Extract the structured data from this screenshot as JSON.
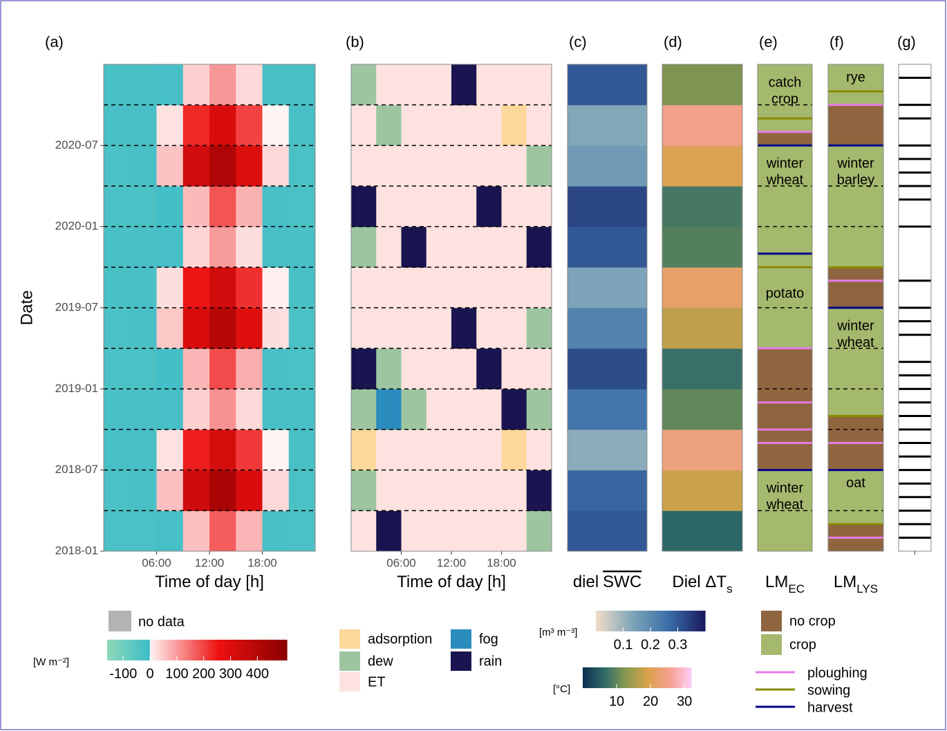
{
  "chart_data": [
    {
      "type": "heatmap",
      "label": "(a)",
      "y_label": "Date",
      "x_label": "Time of day [h]",
      "x": [
        0,
        3,
        6,
        9,
        12,
        15,
        18,
        21
      ],
      "xlim": [
        0,
        24
      ],
      "xticks": [
        {
          "value": 6,
          "label": "06:00"
        },
        {
          "value": 12,
          "label": "12:00"
        },
        {
          "value": 18,
          "label": "18:00"
        }
      ],
      "y": [
        "2018-01",
        "2018-04",
        "2018-07",
        "2018-10",
        "2019-01",
        "2019-04",
        "2019-07",
        "2019-10",
        "2020-01",
        "2020-04",
        "2020-07",
        "2020-10"
      ],
      "ylim": [
        "2018-01",
        "2021-01"
      ],
      "yticks": [
        "2018-01",
        "2018-07",
        "2019-01",
        "2019-07",
        "2020-01",
        "2020-07"
      ],
      "values": [
        [
          -30,
          -30,
          -20,
          60,
          170,
          70,
          -25,
          -30
        ],
        [
          -30,
          -25,
          60,
          340,
          430,
          310,
          30,
          -30
        ],
        [
          -25,
          -25,
          20,
          240,
          320,
          210,
          0,
          -25
        ],
        [
          -25,
          -25,
          -20,
          40,
          110,
          30,
          -25,
          -25
        ],
        [
          -30,
          -30,
          -15,
          70,
          190,
          80,
          -25,
          -30
        ],
        [
          -30,
          -25,
          50,
          310,
          400,
          290,
          25,
          -30
        ],
        [
          -25,
          -25,
          25,
          250,
          330,
          220,
          5,
          -25
        ],
        [
          -25,
          -25,
          -20,
          35,
          100,
          25,
          -25,
          -25
        ],
        [
          -30,
          -30,
          -15,
          65,
          180,
          75,
          -25,
          -30
        ],
        [
          -30,
          -25,
          55,
          330,
          420,
          300,
          30,
          -30
        ],
        [
          -25,
          -25,
          20,
          230,
          310,
          200,
          0,
          -25
        ],
        [
          -25,
          -25,
          -20,
          40,
          105,
          30,
          -25,
          -25
        ]
      ],
      "no_data_label": "no data",
      "no_data_color": "#b3b3b3",
      "colorbar": {
        "title": "[W m⁻²]",
        "lim": [
          -160,
          510
        ],
        "ticks": [
          -100,
          0,
          100,
          200,
          300,
          400
        ],
        "colors_negative": [
          "#8fd8b8",
          "#3cbcc8"
        ],
        "colors_positive": [
          "#fff4f4",
          "#ee1111",
          "#8b0000"
        ]
      }
    },
    {
      "type": "category_heatmap",
      "label": "(b)",
      "x_label": "Time of day [h]",
      "x": [
        0,
        3,
        6,
        9,
        12,
        15,
        18,
        21
      ],
      "xlim": [
        0,
        24
      ],
      "xticks": [
        {
          "value": 6,
          "label": "06:00"
        },
        {
          "value": 12,
          "label": "12:00"
        },
        {
          "value": 18,
          "label": "18:00"
        }
      ],
      "y": [
        "2018-01",
        "2018-04",
        "2018-07",
        "2018-10",
        "2019-01",
        "2019-04",
        "2019-07",
        "2019-10",
        "2020-01",
        "2020-04",
        "2020-07",
        "2020-10"
      ],
      "ylim": [
        "2018-01",
        "2021-01"
      ],
      "categories": [
        {
          "name": "adsorption",
          "color": "#fdd89b"
        },
        {
          "name": "dew",
          "color": "#9dc6a0"
        },
        {
          "name": "ET",
          "color": "#fde2e0"
        },
        {
          "name": "fog",
          "color": "#2b8cbe"
        },
        {
          "name": "rain",
          "color": "#1a1550"
        }
      ],
      "values": [
        [
          "ET",
          "rain",
          "ET",
          "ET",
          "ET",
          "ET",
          "ET",
          "dew"
        ],
        [
          "dew",
          "ET",
          "ET",
          "ET",
          "ET",
          "ET",
          "ET",
          "rain"
        ],
        [
          "adsorption",
          "ET",
          "ET",
          "ET",
          "ET",
          "ET",
          "adsorption",
          "ET"
        ],
        [
          "dew",
          "fog",
          "dew",
          "ET",
          "ET",
          "ET",
          "rain",
          "dew"
        ],
        [
          "rain",
          "dew",
          "ET",
          "ET",
          "ET",
          "rain",
          "ET",
          "ET"
        ],
        [
          "ET",
          "ET",
          "ET",
          "ET",
          "rain",
          "ET",
          "ET",
          "dew"
        ],
        [
          "ET",
          "ET",
          "ET",
          "ET",
          "ET",
          "ET",
          "ET",
          "ET"
        ],
        [
          "dew",
          "ET",
          "rain",
          "ET",
          "ET",
          "ET",
          "ET",
          "rain"
        ],
        [
          "rain",
          "ET",
          "ET",
          "ET",
          "ET",
          "rain",
          "ET",
          "ET"
        ],
        [
          "ET",
          "ET",
          "ET",
          "ET",
          "ET",
          "ET",
          "ET",
          "dew"
        ],
        [
          "ET",
          "dew",
          "ET",
          "ET",
          "ET",
          "ET",
          "adsorption",
          "ET"
        ],
        [
          "dew",
          "ET",
          "ET",
          "ET",
          "rain",
          "ET",
          "ET",
          "ET"
        ]
      ]
    },
    {
      "type": "strip",
      "label": "(c)",
      "x_label": "diel",
      "x_label_overlined": "SWC",
      "y": [
        "2018-01",
        "2018-04",
        "2018-07",
        "2018-10",
        "2019-01",
        "2019-04",
        "2019-07",
        "2019-10",
        "2020-01",
        "2020-04",
        "2020-07",
        "2020-10"
      ],
      "ylim": [
        "2018-01",
        "2021-01"
      ],
      "values": [
        0.3,
        0.28,
        0.12,
        0.25,
        0.32,
        0.22,
        0.14,
        0.3,
        0.33,
        0.16,
        0.13,
        0.3
      ],
      "colorbar": {
        "title": "[m³ m⁻³]",
        "lim": [
          0,
          0.4
        ],
        "ticks": [
          0.1,
          0.2,
          0.3
        ],
        "colors": [
          "#f2dcc8",
          "#7fa6b8",
          "#3a6ea8",
          "#1a1a5e"
        ]
      }
    },
    {
      "type": "strip",
      "label": "(d)",
      "x_label": "Diel ΔT",
      "x_label_sub": "s",
      "y": [
        "2018-01",
        "2018-04",
        "2018-07",
        "2018-10",
        "2019-01",
        "2019-04",
        "2019-07",
        "2019-10",
        "2020-01",
        "2020-04",
        "2020-07",
        "2020-10"
      ],
      "ylim": [
        "2018-01",
        "2021-01"
      ],
      "values": [
        6,
        18,
        24,
        10,
        7,
        17,
        22,
        9,
        8,
        20,
        25,
        12
      ],
      "colorbar": {
        "title": "[°C]",
        "lim": [
          0,
          32
        ],
        "ticks": [
          10,
          20,
          30
        ],
        "colors": [
          "#0d2e4f",
          "#2f6c6a",
          "#8a9a50",
          "#d9a24a",
          "#f5a090",
          "#ffccf5"
        ]
      }
    },
    {
      "type": "land_management",
      "label": "(e)",
      "x_label": "LM",
      "x_label_sub": "EC",
      "ylim": [
        "2018-01",
        "2021-01"
      ],
      "segments": [
        {
          "start": "2018-01",
          "end": "2018-07",
          "state": "crop"
        },
        {
          "start": "2018-07",
          "end": "2019-04",
          "state": "no crop"
        },
        {
          "start": "2019-04",
          "end": "2020-07",
          "state": "crop"
        },
        {
          "start": "2020-07",
          "end": "2020-08",
          "state": "no crop"
        },
        {
          "start": "2020-08",
          "end": "2021-01",
          "state": "crop"
        }
      ],
      "events": [
        {
          "date": "2018-07",
          "kind": "harvest"
        },
        {
          "date": "2018-09",
          "kind": "ploughing"
        },
        {
          "date": "2018-10",
          "kind": "ploughing"
        },
        {
          "date": "2018-12",
          "kind": "ploughing"
        },
        {
          "date": "2019-04",
          "kind": "ploughing"
        },
        {
          "date": "2019-10",
          "kind": "sowing"
        },
        {
          "date": "2019-11",
          "kind": "harvest"
        },
        {
          "date": "2020-07",
          "kind": "harvest"
        },
        {
          "date": "2020-08",
          "kind": "ploughing"
        },
        {
          "date": "2020-09",
          "kind": "sowing"
        }
      ],
      "labels": [
        {
          "date": "2018-05",
          "lines": [
            "winter",
            "wheat"
          ]
        },
        {
          "date": "2019-08",
          "lines": [
            "potato"
          ]
        },
        {
          "date": "2020-05",
          "lines": [
            "winter",
            "wheat"
          ]
        },
        {
          "date": "2020-11",
          "lines": [
            "catch",
            "crop"
          ]
        }
      ],
      "states": [
        {
          "name": "no crop",
          "color": "#8f6540"
        },
        {
          "name": "crop",
          "color": "#a4b96d"
        }
      ],
      "event_kinds": [
        {
          "name": "ploughing",
          "color": "#e67ce6"
        },
        {
          "name": "sowing",
          "color": "#8a8a00"
        },
        {
          "name": "harvest",
          "color": "#00008b"
        }
      ]
    },
    {
      "type": "land_management",
      "label": "(f)",
      "x_label": "LM",
      "x_label_sub": "LYS",
      "ylim": [
        "2018-01",
        "2021-01"
      ],
      "segments": [
        {
          "start": "2018-01",
          "end": "2018-03",
          "state": "no crop"
        },
        {
          "start": "2018-03",
          "end": "2018-07",
          "state": "crop"
        },
        {
          "start": "2018-07",
          "end": "2018-11",
          "state": "no crop"
        },
        {
          "start": "2018-11",
          "end": "2019-07",
          "state": "crop"
        },
        {
          "start": "2019-07",
          "end": "2019-10",
          "state": "no crop"
        },
        {
          "start": "2019-10",
          "end": "2020-07",
          "state": "crop"
        },
        {
          "start": "2020-07",
          "end": "2020-10",
          "state": "no crop"
        },
        {
          "start": "2020-10",
          "end": "2021-01",
          "state": "crop"
        }
      ],
      "events": [
        {
          "date": "2018-02",
          "kind": "ploughing"
        },
        {
          "date": "2018-03",
          "kind": "sowing"
        },
        {
          "date": "2018-07",
          "kind": "harvest"
        },
        {
          "date": "2018-09",
          "kind": "ploughing"
        },
        {
          "date": "2018-11",
          "kind": "sowing"
        },
        {
          "date": "2019-07",
          "kind": "harvest"
        },
        {
          "date": "2019-09",
          "kind": "ploughing"
        },
        {
          "date": "2019-10",
          "kind": "sowing"
        },
        {
          "date": "2020-07",
          "kind": "harvest"
        },
        {
          "date": "2020-10",
          "kind": "ploughing"
        },
        {
          "date": "2020-11",
          "kind": "sowing"
        }
      ],
      "labels": [
        {
          "date": "2018-06",
          "lines": [
            "oat"
          ]
        },
        {
          "date": "2019-05",
          "lines": [
            "winter",
            "wheat"
          ]
        },
        {
          "date": "2020-05",
          "lines": [
            "winter",
            "barley"
          ]
        },
        {
          "date": "2020-12",
          "lines": [
            "rye"
          ]
        }
      ]
    },
    {
      "type": "events",
      "label": "(g)",
      "ylim": [
        "2018-01",
        "2021-01"
      ],
      "dates": [
        "2018-02",
        "2018-03",
        "2018-04",
        "2018-05",
        "2018-06",
        "2018-07",
        "2018-08",
        "2018-09",
        "2018-10",
        "2018-11",
        "2018-12",
        "2019-01",
        "2019-02",
        "2019-03",
        "2019-05",
        "2019-06",
        "2019-07",
        "2019-09",
        "2020-01",
        "2020-03",
        "2020-04",
        "2020-05",
        "2020-06",
        "2020-07",
        "2020-09",
        "2020-10",
        "2020-12"
      ]
    }
  ]
}
